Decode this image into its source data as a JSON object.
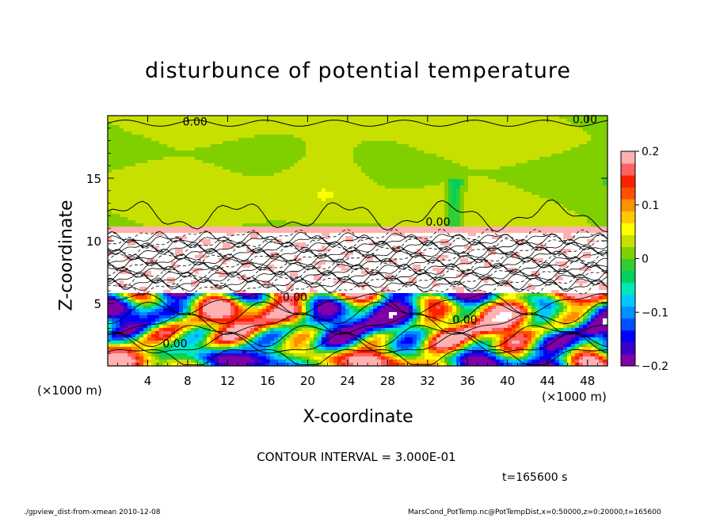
{
  "chart_data": {
    "type": "heatmap",
    "title": "disturbunce of potential temperature",
    "xlabel": "X-coordinate",
    "ylabel": "Z-coordinate",
    "x_unit": "(×1000 m)",
    "z_unit": "(×1000 m)",
    "xlim": [
      0,
      50
    ],
    "zlim": [
      0,
      20
    ],
    "x_ticks": [
      4,
      8,
      12,
      16,
      20,
      24,
      28,
      32,
      36,
      40,
      44,
      48
    ],
    "z_ticks": [
      5,
      10,
      15
    ],
    "colorbar": {
      "range": [
        -0.2,
        0.2
      ],
      "tick_values": [
        0.2,
        0.1,
        0,
        -0.1,
        -0.2
      ],
      "tick_labels": [
        "0.2",
        "0.1",
        "0",
        "−0.1",
        "−0.2"
      ],
      "colors": [
        "#7f00a8",
        "#3a00c8",
        "#0000ff",
        "#0050ff",
        "#0090ff",
        "#00c8ff",
        "#00e8b8",
        "#00d060",
        "#32cd32",
        "#80d000",
        "#c8e000",
        "#ffff00",
        "#ffc800",
        "#ff9000",
        "#ff5000",
        "#ff2000",
        "#ff6060",
        "#ffb0b0"
      ]
    },
    "contour_labels": [
      {
        "text": "0.00",
        "x": 7.5,
        "z": 19.2
      },
      {
        "text": "0.00",
        "x": 46.5,
        "z": 19.4
      },
      {
        "text": "0.00",
        "x": 31.8,
        "z": 11.2
      },
      {
        "text": "0.00",
        "x": 34.5,
        "z": 3.4
      },
      {
        "text": "0.00",
        "x": 17.5,
        "z": 5.2
      },
      {
        "text": "0.00",
        "x": 5.5,
        "z": 1.5
      }
    ],
    "contour_interval_text": "CONTOUR INTERVAL = 3.000E-01",
    "time_text": "t=165600 s"
  },
  "footer": {
    "left": "./gpview_dist-from-xmean  2010-12-08",
    "right": "MarsCond_PotTemp.nc@PotTempDist,x=0:50000,z=0:20000,t=165600"
  }
}
